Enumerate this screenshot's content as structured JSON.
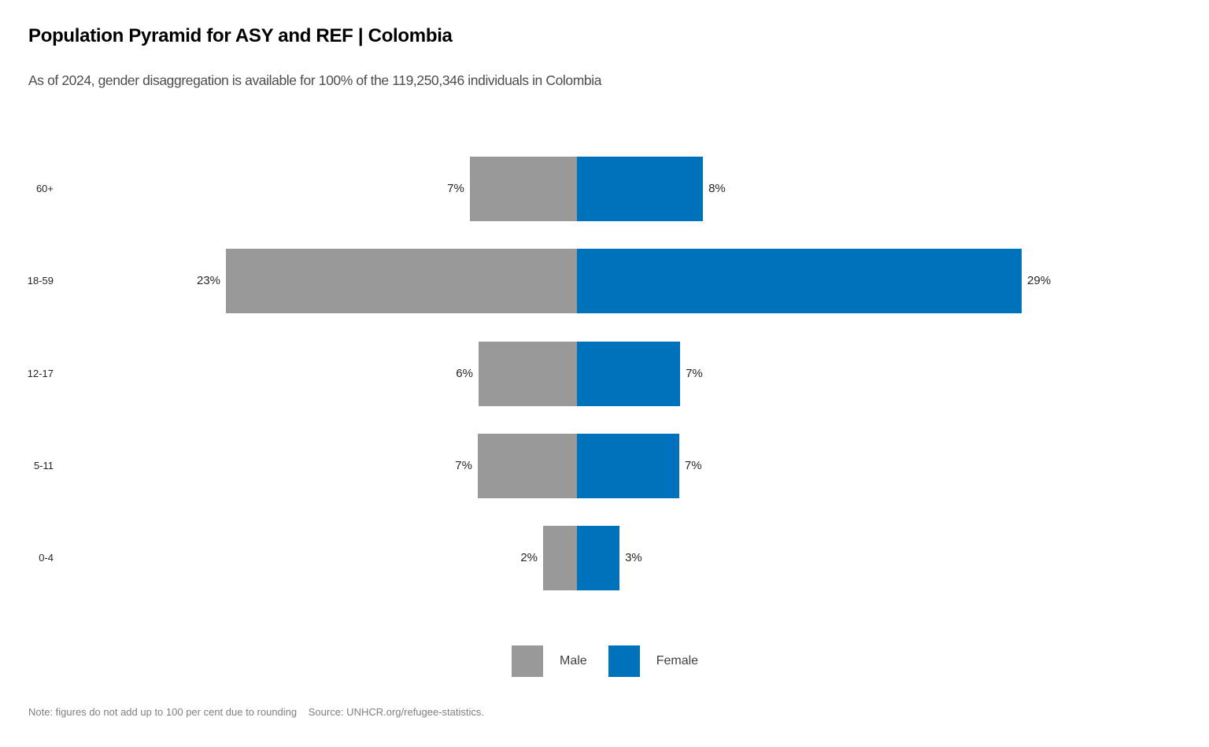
{
  "header": {
    "title": "Population Pyramid for ASY and REF | Colombia",
    "subtitle": "As of 2024, gender disaggregation is available for 100% of the 119,250,346 individuals in Colombia"
  },
  "chart_data": {
    "type": "bar",
    "variant": "population-pyramid",
    "orientation": "horizontal",
    "categories": [
      "60+",
      "18-59",
      "12-17",
      "5-11",
      "0-4"
    ],
    "series": [
      {
        "name": "Male",
        "side": "left",
        "color": "#999999",
        "values": [
          7,
          23,
          6,
          7,
          2
        ],
        "labels": [
          "7%",
          "23%",
          "6%",
          "7%",
          "2%"
        ],
        "est_values": [
          7.0,
          22.93,
          6.43,
          6.48,
          2.21
        ]
      },
      {
        "name": "Female",
        "side": "right",
        "color": "#0072BC",
        "values": [
          8,
          29,
          7,
          7,
          3
        ],
        "labels": [
          "8%",
          "29%",
          "7%",
          "7%",
          "3%"
        ],
        "est_values": [
          8.23,
          29.05,
          6.74,
          6.68,
          2.78
        ]
      }
    ],
    "value_unit": "%",
    "grid": false,
    "axis_lines": false,
    "legend_position": "bottom-center"
  },
  "footer": {
    "note": "Note: figures do not add up to 100 per cent due to rounding",
    "source": "Source: UNHCR.org/refugee-statistics."
  }
}
